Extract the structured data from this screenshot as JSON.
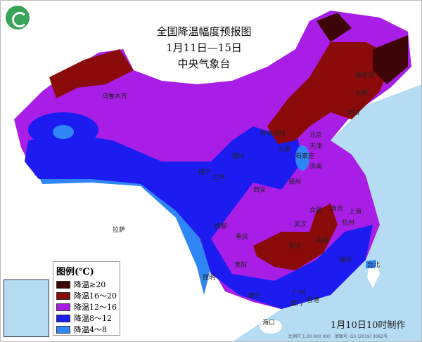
{
  "header": {
    "title": "全国降温幅度预报图",
    "period": "1月11日—15日",
    "issuer": "中央气象台"
  },
  "legend": {
    "title": "图例(℃)",
    "items": [
      {
        "label": "降温≥20",
        "color": "#3d0508"
      },
      {
        "label": "降温16～20",
        "color": "#8b0a0a"
      },
      {
        "label": "降温12～16",
        "color": "#a81ee6"
      },
      {
        "label": "降温8～12",
        "color": "#1c1cf0"
      },
      {
        "label": "降温4～8",
        "color": "#2f86f5"
      }
    ]
  },
  "cities": [
    "哈尔滨",
    "长春",
    "沈阳",
    "呼和浩特",
    "北京",
    "天津",
    "石家庄",
    "太原",
    "银川",
    "西宁",
    "兰州",
    "济南",
    "郑州",
    "西安",
    "合肥",
    "南京",
    "上海",
    "武汉",
    "杭州",
    "南昌",
    "长沙",
    "成都",
    "重庆",
    "贵阳",
    "福州",
    "台北",
    "广州",
    "南宁",
    "澳门",
    "香港",
    "海口",
    "昆明",
    "拉萨",
    "乌鲁木齐"
  ],
  "footer": {
    "made": "1月10日10时制作",
    "scale": "比例尺 1:20 000 000",
    "map_no": "审图号: GS (2019) 3082号"
  }
}
